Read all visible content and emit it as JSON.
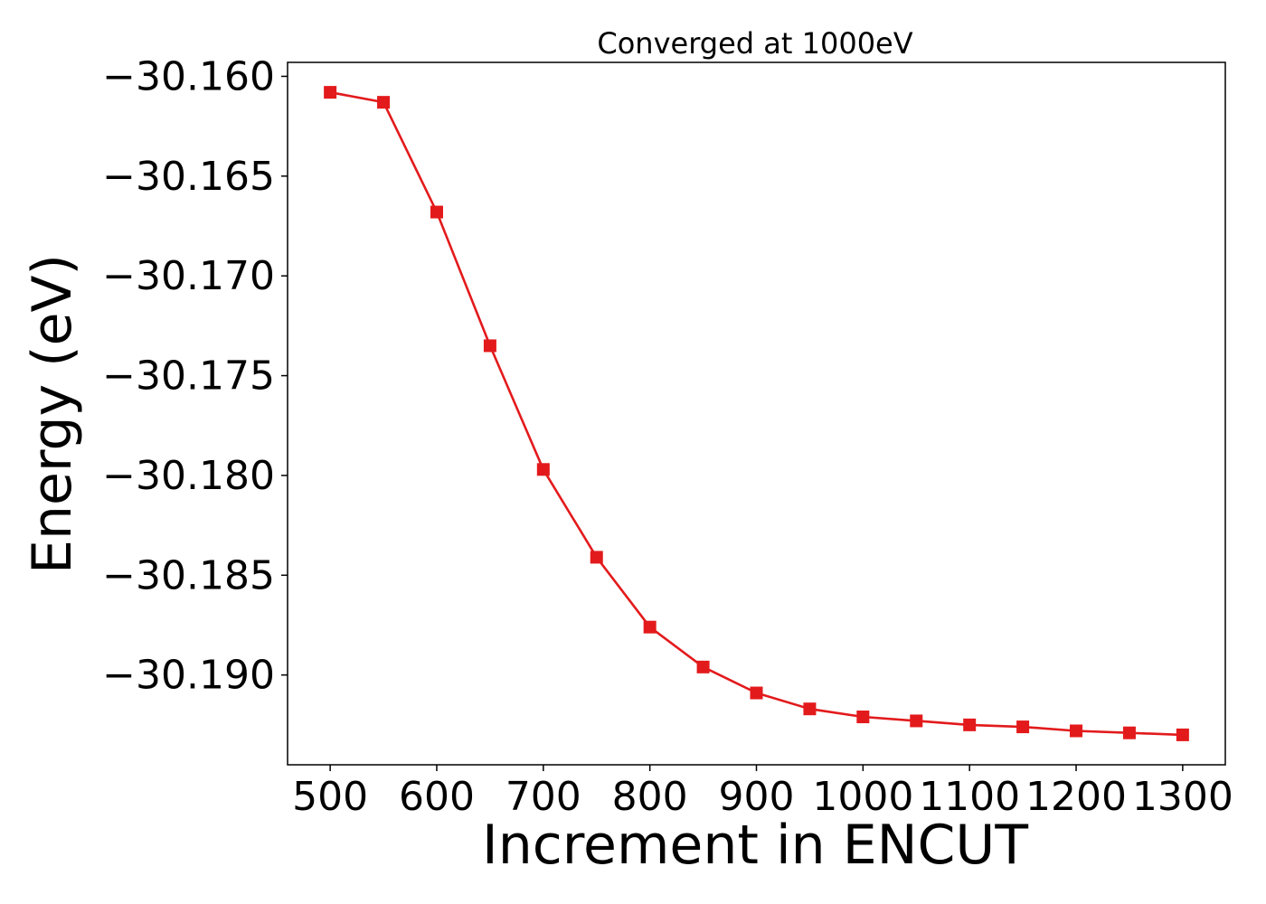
{
  "chart_data": {
    "type": "line",
    "title": "Converged at 1000eV",
    "xlabel": "Increment in ENCUT",
    "ylabel": "Energy (eV)",
    "xlim": [
      460,
      1340
    ],
    "ylim": [
      -30.1945,
      -30.1593
    ],
    "xticks": [
      "500",
      "600",
      "700",
      "800",
      "900",
      "1000",
      "1100",
      "1200",
      "1300"
    ],
    "yticks": [
      "−30.160",
      "−30.165",
      "−30.170",
      "−30.175",
      "−30.180",
      "−30.185",
      "−30.190"
    ],
    "xtick_values": [
      500,
      600,
      700,
      800,
      900,
      1000,
      1100,
      1200,
      1300
    ],
    "ytick_values": [
      -30.16,
      -30.165,
      -30.17,
      -30.175,
      -30.18,
      -30.185,
      -30.19
    ],
    "grid": false,
    "series": [
      {
        "color": "#e31a1c",
        "marker": "square",
        "x": [
          500,
          550,
          600,
          650,
          700,
          750,
          800,
          850,
          900,
          950,
          1000,
          1050,
          1100,
          1150,
          1200,
          1250,
          1300
        ],
        "y": [
          -30.1608,
          -30.1613,
          -30.1668,
          -30.1735,
          -30.1797,
          -30.1841,
          -30.1876,
          -30.1896,
          -30.1909,
          -30.1917,
          -30.1921,
          -30.1923,
          -30.1925,
          -30.1926,
          -30.1928,
          -30.1929,
          -30.193
        ]
      }
    ]
  }
}
